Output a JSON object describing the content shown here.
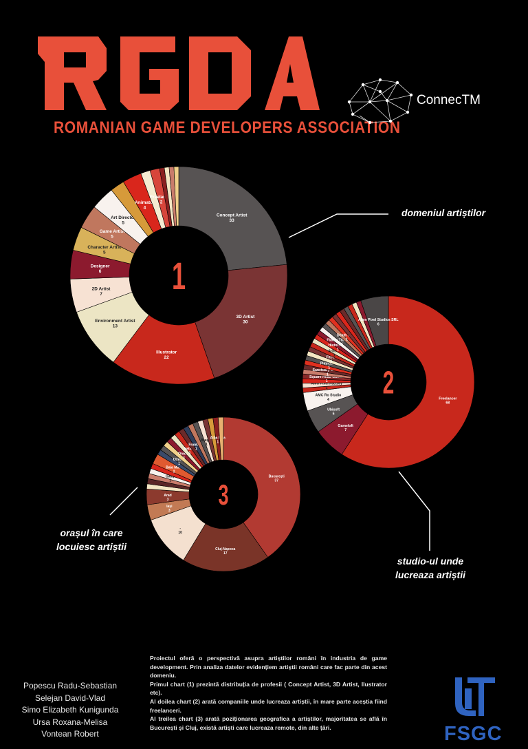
{
  "header": {
    "logo_title": "RGDA",
    "logo_subtitle": "ROMANIAN GAME DEVELOPERS ASSOCIATION",
    "partner": "ConnecTM",
    "brand_color": "#e8503a"
  },
  "callouts": {
    "chart1": "domeniul artiștilor",
    "chart2": "studio-ul unde lucreaza artiștii",
    "chart3": "orașul în care locuiesc artiștii"
  },
  "authors": [
    "Popescu Radu-Sebastian",
    "Selejan David-Vlad",
    "Simo Elizabeth Kunigunda",
    "Ursa Roxana-Melisa",
    "Vontean Robert"
  ],
  "description": [
    "Proiectul oferă o perspectivă asupra artiștilor români în industria de game development. Prin analiza datelor evidențiem artiștii români care fac parte din acest domeniu.",
    "Primul chart (1) prezintă distribuția de profesii ( Concept Artist, 3D Artist, Ilustrator etc).",
    "Al doilea chart (2) arată companiile unde lucreaza artiștii, în mare parte aceștia fiind freelanceri.",
    "Al treilea chart (3) arată poziționarea geografica a artiștilor, majoritatea se află în București și Cluj, există artiști care lucreaza remote, din alte țări."
  ],
  "footer_logo": {
    "top": "UT",
    "text": "FSGC",
    "color": "#2f63c0"
  },
  "chart_data": [
    {
      "type": "pie",
      "center_label": "1",
      "slices": [
        {
          "label": "Concept Artist",
          "value": 33,
          "color": "#575353"
        },
        {
          "label": "3D Artist",
          "value": 30,
          "color": "#7a3434"
        },
        {
          "label": "Illustrator",
          "value": 22,
          "color": "#c8281c"
        },
        {
          "label": "Environment Artist",
          "value": 13,
          "color": "#ece5c4"
        },
        {
          "label": "2D Artist",
          "value": 7,
          "color": "#f7e2d3"
        },
        {
          "label": "Designer",
          "value": 6,
          "color": "#8c1a2e"
        },
        {
          "label": "Character Artist",
          "value": 5,
          "color": "#d8b25a"
        },
        {
          "label": "Game Artist",
          "value": 5,
          "color": "#c0775e"
        },
        {
          "label": "Art Director",
          "value": 5,
          "color": "#f8f2ee"
        },
        {
          "label": "",
          "value": 3,
          "color": "#d69a3a"
        },
        {
          "label": "Animator",
          "value": 4,
          "color": "#d9261c"
        },
        {
          "label": "",
          "value": 2,
          "color": "#f5ecd2"
        },
        {
          "label": "Freelancer",
          "value": 2,
          "color": "#d7453b"
        },
        {
          "label": "",
          "value": 1,
          "color": "#8b2020"
        },
        {
          "label": "",
          "value": 1,
          "color": "#f4e6c3"
        },
        {
          "label": "",
          "value": 1,
          "color": "#c97c6b"
        },
        {
          "label": "",
          "value": 1,
          "color": "#f0d08a"
        }
      ]
    },
    {
      "type": "pie",
      "center_label": "2",
      "slices": [
        {
          "label": "Freelancer",
          "value": 68,
          "color": "#c8281c"
        },
        {
          "label": "Gameloft",
          "value": 7,
          "color": "#8c1a2e"
        },
        {
          "label": "Ubisoft",
          "value": 5,
          "color": "#575353"
        },
        {
          "label": "AMC Ro Studio",
          "value": 4,
          "color": "#f8f2ee"
        },
        {
          "label": "",
          "value": 1,
          "color": "#c8281c"
        },
        {
          "label": "AMC Pixel Factory",
          "value": 1,
          "color": "#f7e2d3"
        },
        {
          "label": "",
          "value": 1,
          "color": "#d9261c"
        },
        {
          "label": "Square Head Games",
          "value": 1,
          "color": "#8a2a2a"
        },
        {
          "label": "",
          "value": 1,
          "color": "#c97c6b"
        },
        {
          "label": "Sanctuary Games",
          "value": 1,
          "color": "#6b2a2a"
        },
        {
          "label": "",
          "value": 1,
          "color": "#e0301f"
        },
        {
          "label": "Playfusion",
          "value": 1,
          "color": "#575353"
        },
        {
          "label": "",
          "value": 1,
          "color": "#f4e6c3"
        },
        {
          "label": "Fitech",
          "value": 1,
          "color": "#7a3434"
        },
        {
          "label": "",
          "value": 1,
          "color": "#c8281c"
        },
        {
          "label": "Aritech",
          "value": 1,
          "color": "#ece5c4"
        },
        {
          "label": "",
          "value": 1,
          "color": "#d9261c"
        },
        {
          "label": "Historic VR",
          "value": 1,
          "color": "#8c1a2e"
        },
        {
          "label": "",
          "value": 1,
          "color": "#f8f2ee"
        },
        {
          "label": "Flatter Than Earth",
          "value": 1,
          "color": "#575353"
        },
        {
          "label": "",
          "value": 1,
          "color": "#c0775e"
        },
        {
          "label": "Death Point",
          "value": 1,
          "color": "#e0301f"
        },
        {
          "label": "",
          "value": 1,
          "color": "#7a3434"
        },
        {
          "label": "",
          "value": 1,
          "color": "#d9261c"
        },
        {
          "label": "",
          "value": 1,
          "color": "#6b2a2a"
        },
        {
          "label": "",
          "value": 1,
          "color": "#575353"
        },
        {
          "label": "",
          "value": 1,
          "color": "#c8281c"
        },
        {
          "label": "",
          "value": 1,
          "color": "#f4e6c3"
        },
        {
          "label": "",
          "value": 1,
          "color": "#8c1a2e"
        },
        {
          "label": "Alien Pixel Studios SRL",
          "value": 6,
          "color": "#4a4646"
        }
      ]
    },
    {
      "type": "pie",
      "center_label": "3",
      "slices": [
        {
          "label": "București",
          "value": 37,
          "color": "#b23a32"
        },
        {
          "label": "Cluj-Napoca",
          "value": 17,
          "color": "#7a3428"
        },
        {
          "label": "-",
          "value": 10,
          "color": "#f4e0cf"
        },
        {
          "label": "Iași",
          "value": 3,
          "color": "#c27a54"
        },
        {
          "label": "Arad",
          "value": 3,
          "color": "#8c3a2e"
        },
        {
          "label": "",
          "value": 1,
          "color": "#f4e6c3"
        },
        {
          "label": "",
          "value": 1,
          "color": "#5a2626"
        },
        {
          "label": "",
          "value": 1,
          "color": "#c97c6b"
        },
        {
          "label": "Galați",
          "value": 1,
          "color": "#f8f2ee"
        },
        {
          "label": "",
          "value": 1,
          "color": "#d9261c"
        },
        {
          "label": "Baia Mare",
          "value": 2,
          "color": "#e05a30"
        },
        {
          "label": "",
          "value": 1,
          "color": "#3a4a6a"
        },
        {
          "label": "Utrecht",
          "value": 1,
          "color": "#575353"
        },
        {
          "label": "",
          "value": 1,
          "color": "#f0d08a"
        },
        {
          "label": "Oradea",
          "value": 1,
          "color": "#8c1a2e"
        },
        {
          "label": "",
          "value": 1,
          "color": "#ece5c4"
        },
        {
          "label": "Neboiu",
          "value": 1,
          "color": "#c8281c"
        },
        {
          "label": "",
          "value": 1,
          "color": "#6b2a2a"
        },
        {
          "label": "Frankfurt",
          "value": 1,
          "color": "#2e3d5a"
        },
        {
          "label": "",
          "value": 1,
          "color": "#c0775e"
        },
        {
          "label": "",
          "value": 1,
          "color": "#575353"
        },
        {
          "label": "Brașov",
          "value": 1,
          "color": "#f7e2d3"
        },
        {
          "label": "",
          "value": 1,
          "color": "#7a3434"
        },
        {
          "label": "",
          "value": 1,
          "color": "#d69a3a"
        },
        {
          "label": "Alba Iulia",
          "value": 1,
          "color": "#8b2020"
        },
        {
          "label": "",
          "value": 1,
          "color": "#e8b070"
        }
      ]
    }
  ]
}
